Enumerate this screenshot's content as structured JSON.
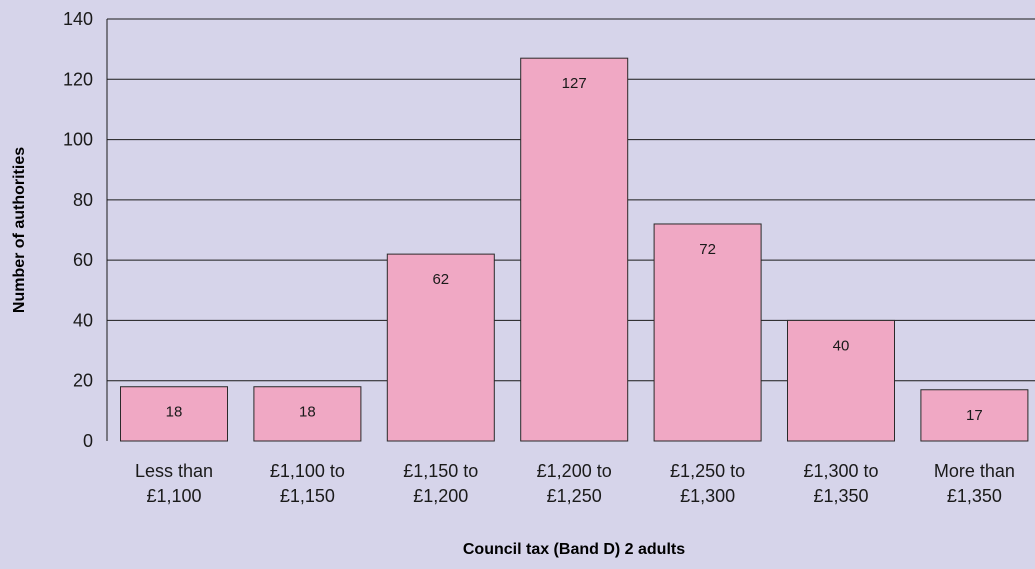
{
  "chart_data": {
    "type": "bar",
    "categories": [
      [
        "Less than",
        "£1,100"
      ],
      [
        "£1,100 to",
        "£1,150"
      ],
      [
        "£1,150 to",
        "£1,200"
      ],
      [
        "£1,200 to",
        "£1,250"
      ],
      [
        "£1,250 to",
        "£1,300"
      ],
      [
        "£1,300 to",
        "£1,350"
      ],
      [
        "More than",
        "£1,350"
      ]
    ],
    "values": [
      18,
      18,
      62,
      127,
      72,
      40,
      17
    ],
    "title": "",
    "xlabel": "Council tax (Band D) 2 adults",
    "ylabel": "Number of authorities",
    "ylim": [
      0,
      140
    ],
    "yticks": [
      0,
      20,
      40,
      60,
      80,
      100,
      120,
      140
    ],
    "grid": true,
    "legend": "none",
    "colors": {
      "background": "#d6d4ea",
      "bar_fill": "#f0a8c4",
      "bar_stroke": "#2a2a2a",
      "grid": "#1a1a1a"
    }
  }
}
